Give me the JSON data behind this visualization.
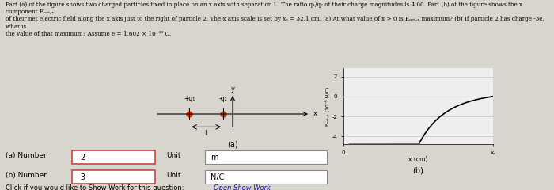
{
  "bg_color": "#d8d5ce",
  "text_color": "#000000",
  "title_text": "Part (a) of the figure shows two charged particles fixed in place on an x axis with separation L. The ratio q₁/q₂ of their charge magnitudes is 4.00. Part (b) of the figure shows the x component Eₙₑₜ,ₓ\nof their net electric field along the x axis just to the right of particle 2. The x axis scale is set by xₛ = 32.1 cm. (a) At what value of x > 0 is Eₙₑₜ,ₓ maximum? (b) If particle 2 has charge -3e, what is\nthe value of that maximum? Assume e = 1.602 × 10⁻¹⁹ C.",
  "diagram_label_a": "(a)",
  "diagram_label_b": "(b)",
  "particle1_label": "+q₁",
  "particle2_label": "-q₂",
  "answer_a_label": "(a) Number",
  "answer_a_value": "2",
  "answer_a_unit_label": "Unit",
  "answer_a_unit": "m",
  "answer_b_label": "(b) Number",
  "answer_b_value": "3",
  "answer_b_unit_label": "Unit",
  "answer_b_unit": "N/C",
  "click_text": "Click if you would like to Show Work for this question:",
  "link_text": "Open Show Work",
  "graph_yticks": [
    2,
    0,
    -2,
    -4
  ],
  "graph_xtick_label": "x (cm)",
  "graph_ylabel": "Eₙₑₜ,ₓ (10⁻⁶ N/C)",
  "axis_color": "#cccccc",
  "curve_color": "#000000"
}
